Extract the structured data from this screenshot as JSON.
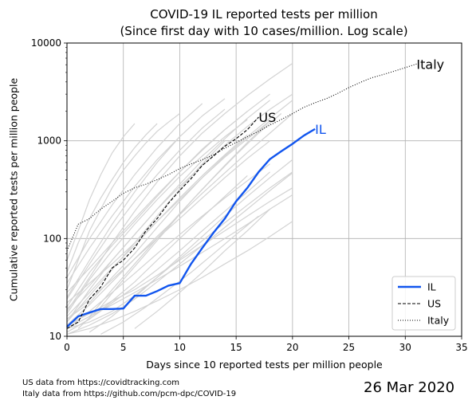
{
  "chart_data": {
    "type": "line",
    "title_line1": "COVID-19 IL reported tests per million",
    "title_line2": "(Since first day with 10 cases/million. Log scale)",
    "xlabel": "Days since 10 reported tests per million people",
    "ylabel": "Cumulative reported tests per million people",
    "xlim": [
      0,
      35
    ],
    "ylim": [
      10,
      10000
    ],
    "yscale": "log",
    "grid": true,
    "x_ticks": [
      0,
      5,
      10,
      15,
      20,
      25,
      30,
      35
    ],
    "y_ticks": [
      10,
      100,
      1000,
      10000
    ],
    "legend_position": "lower-right",
    "colors": {
      "IL": "#1155ee",
      "US": "#000000",
      "Italy": "#000000",
      "background_lines": "#d3d3d3",
      "grid": "#b0b0b0"
    },
    "series": [
      {
        "name": "IL",
        "style": "solid",
        "end_label": "IL",
        "x": [
          0,
          1,
          2,
          3,
          4,
          5,
          6,
          7,
          8,
          9,
          10,
          11,
          12,
          13,
          14,
          15,
          16,
          17,
          18,
          19,
          20,
          21,
          22
        ],
        "y": [
          12.5,
          16,
          17.5,
          19,
          19,
          19.2,
          26,
          26,
          29,
          33,
          35,
          55,
          80,
          115,
          160,
          240,
          330,
          480,
          650,
          780,
          930,
          1130,
          1320
        ]
      },
      {
        "name": "US",
        "style": "dashed",
        "end_label": "US",
        "x": [
          0,
          1,
          2,
          3,
          4,
          5,
          6,
          7,
          8,
          9,
          10,
          11,
          12,
          13,
          14,
          15,
          16,
          17
        ],
        "y": [
          12,
          14,
          24,
          32,
          50,
          60,
          80,
          120,
          160,
          230,
          310,
          410,
          560,
          700,
          880,
          1050,
          1300,
          1750
        ]
      },
      {
        "name": "Italy",
        "style": "dotted",
        "end_label": "Italy",
        "x": [
          0,
          1,
          2,
          3,
          4,
          5,
          6,
          7,
          8,
          9,
          10,
          11,
          12,
          13,
          14,
          15,
          16,
          17,
          18,
          19,
          20,
          21,
          22,
          23,
          24,
          25,
          26,
          27,
          28,
          29,
          30,
          31
        ],
        "y": [
          75,
          140,
          160,
          200,
          240,
          290,
          330,
          360,
          400,
          450,
          520,
          580,
          640,
          720,
          840,
          960,
          1100,
          1250,
          1450,
          1650,
          1900,
          2200,
          2450,
          2700,
          3050,
          3500,
          3950,
          4400,
          4750,
          5150,
          5600,
          6100
        ]
      }
    ],
    "background_series": [
      {
        "x": [
          0,
          2,
          4,
          6,
          8,
          10,
          12,
          14,
          16,
          18,
          20
        ],
        "y": [
          14,
          30,
          60,
          110,
          200,
          340,
          560,
          900,
          1400,
          2100,
          3000
        ]
      },
      {
        "x": [
          0,
          2,
          4,
          6,
          8,
          10,
          12,
          14,
          16,
          18,
          20
        ],
        "y": [
          15,
          22,
          40,
          70,
          130,
          240,
          420,
          700,
          1100,
          1700,
          2600
        ]
      },
      {
        "x": [
          0,
          2,
          4,
          6,
          8,
          10,
          12,
          14,
          16,
          18,
          20
        ],
        "y": [
          18,
          40,
          90,
          190,
          380,
          700,
          1200,
          1900,
          2900,
          4300,
          6200
        ]
      },
      {
        "x": [
          0,
          2,
          4,
          6,
          8,
          10,
          12,
          14,
          16,
          18
        ],
        "y": [
          12,
          18,
          28,
          44,
          70,
          110,
          170,
          260,
          390,
          580
        ]
      },
      {
        "x": [
          0,
          2,
          4,
          6,
          8,
          10,
          12,
          14,
          16
        ],
        "y": [
          20,
          45,
          85,
          150,
          270,
          480,
          820,
          1300,
          2000
        ]
      },
      {
        "x": [
          0,
          2,
          4,
          6,
          8,
          10,
          12,
          14,
          16,
          18
        ],
        "y": [
          11,
          15,
          22,
          32,
          48,
          75,
          120,
          190,
          300,
          480
        ]
      },
      {
        "x": [
          0,
          2,
          4,
          6,
          8,
          10,
          12,
          14
        ],
        "y": [
          25,
          60,
          140,
          300,
          600,
          1100,
          1800,
          2700
        ]
      },
      {
        "x": [
          0,
          1,
          2,
          3,
          4,
          5,
          6,
          7,
          8,
          9,
          10
        ],
        "y": [
          30,
          60,
          120,
          200,
          330,
          500,
          700,
          950,
          1250,
          1550,
          1900
        ]
      },
      {
        "x": [
          0,
          2,
          4,
          6,
          8,
          10,
          12,
          14,
          16,
          18,
          20
        ],
        "y": [
          13,
          17,
          23,
          30,
          42,
          60,
          85,
          120,
          170,
          240,
          330
        ]
      },
      {
        "x": [
          0,
          2,
          4,
          6,
          8,
          10,
          12,
          14,
          16
        ],
        "y": [
          16,
          28,
          50,
          85,
          150,
          260,
          440,
          720,
          1150
        ]
      },
      {
        "x": [
          0,
          2,
          4,
          6,
          8,
          10,
          12,
          14,
          16,
          18
        ],
        "y": [
          22,
          35,
          55,
          90,
          150,
          250,
          420,
          680,
          1050,
          1600
        ]
      },
      {
        "x": [
          0,
          1,
          2,
          3,
          4,
          5,
          6
        ],
        "y": [
          60,
          120,
          250,
          450,
          750,
          1100,
          1500
        ]
      },
      {
        "x": [
          0,
          2,
          4,
          6,
          8,
          10,
          12,
          14,
          16,
          18,
          20
        ],
        "y": [
          12,
          14,
          18,
          26,
          40,
          62,
          95,
          145,
          220,
          330,
          480
        ]
      },
      {
        "x": [
          1,
          3,
          5,
          7,
          9,
          11,
          13,
          15,
          17,
          19
        ],
        "y": [
          12,
          20,
          38,
          70,
          130,
          240,
          420,
          720,
          1200,
          1900
        ]
      },
      {
        "x": [
          0,
          2,
          4,
          6,
          8,
          10,
          12,
          14,
          16
        ],
        "y": [
          17,
          38,
          75,
          140,
          250,
          430,
          700,
          1100,
          1650
        ]
      },
      {
        "x": [
          0,
          2,
          4,
          6,
          8,
          10,
          12
        ],
        "y": [
          40,
          100,
          220,
          450,
          850,
          1500,
          2400
        ]
      },
      {
        "x": [
          0,
          2,
          4,
          6,
          8,
          10,
          12,
          14,
          16,
          18,
          20
        ],
        "y": [
          10.5,
          13,
          17,
          24,
          36,
          55,
          85,
          130,
          200,
          310,
          470
        ]
      },
      {
        "x": [
          0,
          2,
          4,
          6,
          8,
          10,
          12,
          14
        ],
        "y": [
          14,
          26,
          48,
          90,
          170,
          320,
          580,
          1000
        ]
      },
      {
        "x": [
          2,
          4,
          6,
          8,
          10,
          12,
          14,
          16,
          18,
          20
        ],
        "y": [
          11,
          16,
          25,
          40,
          65,
          105,
          170,
          270,
          420,
          640
        ]
      },
      {
        "x": [
          0,
          2,
          4,
          6,
          8,
          10,
          12,
          14,
          16,
          18
        ],
        "y": [
          19,
          33,
          60,
          110,
          200,
          360,
          630,
          1050,
          1700,
          2600
        ]
      },
      {
        "x": [
          0,
          1,
          2,
          3,
          4,
          5,
          6,
          7,
          8
        ],
        "y": [
          45,
          90,
          160,
          260,
          400,
          600,
          850,
          1150,
          1500
        ]
      },
      {
        "x": [
          0,
          2,
          4,
          6,
          8,
          10,
          12,
          14,
          16,
          18,
          20
        ],
        "y": [
          13,
          21,
          36,
          62,
          105,
          175,
          290,
          470,
          760,
          1200,
          1900
        ]
      },
      {
        "x": [
          3,
          5,
          7,
          9,
          11,
          13,
          15,
          17
        ],
        "y": [
          10.5,
          14,
          20,
          30,
          45,
          70,
          110,
          170
        ]
      },
      {
        "x": [
          0,
          2,
          4,
          6,
          8,
          10,
          12,
          14,
          16
        ],
        "y": [
          11,
          15,
          23,
          36,
          60,
          100,
          165,
          270,
          440
        ]
      },
      {
        "x": [
          0,
          2,
          4,
          6,
          8,
          10,
          12,
          14,
          16,
          18
        ],
        "y": [
          28,
          50,
          90,
          160,
          280,
          480,
          800,
          1300,
          2000,
          3000
        ]
      },
      {
        "x": [
          0,
          2,
          4,
          6,
          8,
          10
        ],
        "y": [
          35,
          80,
          170,
          340,
          640,
          1100
        ]
      },
      {
        "x": [
          0,
          2,
          4,
          6,
          8,
          10,
          12,
          14,
          16,
          18,
          20
        ],
        "y": [
          12,
          16,
          21,
          28,
          38,
          52,
          72,
          100,
          140,
          200,
          280
        ]
      },
      {
        "x": [
          0,
          2,
          4,
          6,
          8,
          10,
          12,
          14,
          16,
          18
        ],
        "y": [
          15,
          24,
          38,
          62,
          100,
          160,
          260,
          420,
          660,
          1000
        ]
      },
      {
        "x": [
          6,
          8,
          10,
          12,
          14,
          16,
          18
        ],
        "y": [
          12,
          18,
          28,
          45,
          75,
          120,
          200
        ]
      },
      {
        "x": [
          0,
          2,
          4,
          6,
          8,
          10,
          12,
          14,
          16,
          18,
          20
        ],
        "y": [
          10.5,
          12,
          14.5,
          18,
          23,
          30,
          40,
          55,
          75,
          105,
          150
        ]
      },
      {
        "x": [
          0,
          2,
          4,
          6,
          8,
          10,
          12,
          14
        ],
        "y": [
          24,
          55,
          120,
          240,
          450,
          800,
          1350,
          2100
        ]
      },
      {
        "x": [
          2,
          4,
          6,
          8,
          10,
          12,
          14,
          16,
          18
        ],
        "y": [
          16,
          30,
          55,
          100,
          180,
          320,
          560,
          960,
          1600
        ]
      }
    ],
    "footnotes": [
      "US data from https://covidtracking.com",
      "Italy data from https://github.com/pcm-dpc/COVID-19"
    ],
    "date": "26 Mar 2020"
  }
}
